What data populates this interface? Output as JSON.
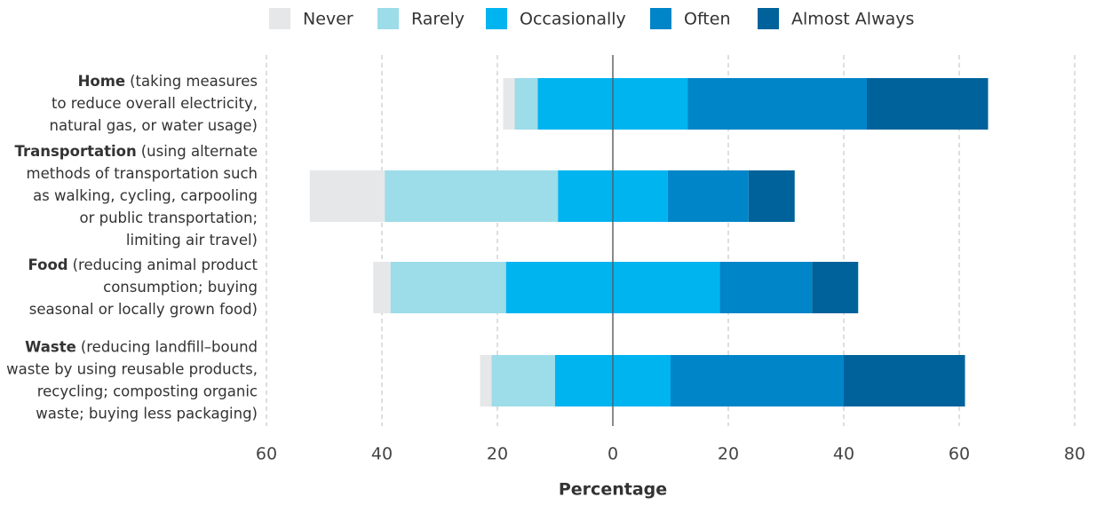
{
  "chart_data": {
    "type": "diverging-bar",
    "x_label": "Percentage",
    "categories": [
      "Home",
      "Transportation",
      "Food",
      "Waste"
    ],
    "category_descriptions": [
      [
        "(taking measures",
        "to reduce overall electricity,",
        "natural gas, or water usage)"
      ],
      [
        "(using alternate",
        "methods of transportation such",
        "as walking, cycling, carpooling",
        "or public transportation;",
        "limiting air travel)"
      ],
      [
        "(reducing animal product",
        "consumption; buying",
        "seasonal or locally grown food)"
      ],
      [
        "(reducing landfill–bound",
        "waste by using reusable products,",
        "recycling; composting organic",
        "waste; buying less packaging)"
      ]
    ],
    "series": [
      {
        "name": "Never",
        "color": "#e6e7e9",
        "side": "left",
        "values": [
          2,
          13,
          3,
          2
        ]
      },
      {
        "name": "Rarely",
        "color": "#9ddce9",
        "side": "left",
        "values": [
          4,
          30,
          20,
          11
        ]
      },
      {
        "name": "Occasionally",
        "color": "#00b4f0",
        "side": "center",
        "values": [
          26,
          19,
          37,
          20
        ]
      },
      {
        "name": "Often",
        "color": "#0085c8",
        "side": "right",
        "values": [
          31,
          14,
          16,
          30
        ]
      },
      {
        "name": "Almost Always",
        "color": "#00629b",
        "side": "right",
        "values": [
          21,
          8,
          8,
          21
        ]
      }
    ],
    "xlim": [
      -60,
      80
    ],
    "xticks": [
      {
        "value": -60,
        "label": "60"
      },
      {
        "value": -40,
        "label": "40"
      },
      {
        "value": -20,
        "label": "20"
      },
      0,
      20,
      40,
      60,
      80
    ],
    "grid": true,
    "legend": "top"
  }
}
